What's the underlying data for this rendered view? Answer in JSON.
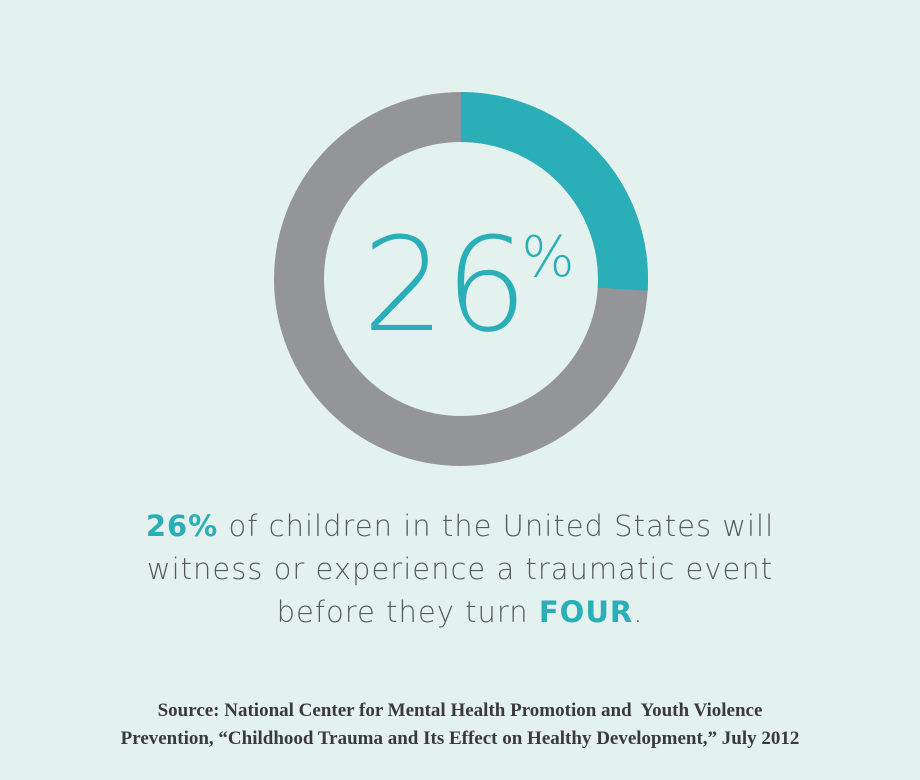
{
  "chart_data": {
    "type": "donut",
    "values": [
      26
    ],
    "unit": "%",
    "color": "#2aaeb7",
    "track_color": "#939598"
  },
  "caption": {
    "lines": [
      [
        {
          "text": "26%",
          "strong": true
        },
        {
          "text": " of children in the United States will",
          "strong": false
        }
      ],
      [
        {
          "text": "witness or experience a traumatic event",
          "strong": false
        }
      ],
      [
        {
          "text": "before they turn ",
          "strong": false
        },
        {
          "text": "FOUR",
          "strong": true
        },
        {
          "text": ".",
          "strong": false
        }
      ]
    ]
  },
  "source": {
    "lines": [
      "Source: National Center for Mental Health Promotion and  Youth Violence",
      "Prevention, “Childhood Trauma and Its Effect on Healthy Development,” July 2012"
    ]
  }
}
